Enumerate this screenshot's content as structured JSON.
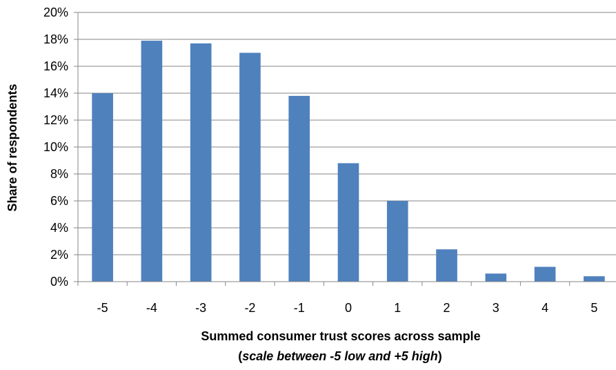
{
  "chart_data": {
    "type": "bar",
    "categories": [
      "-5",
      "-4",
      "-3",
      "-2",
      "-1",
      "0",
      "1",
      "2",
      "3",
      "4",
      "5"
    ],
    "values": [
      14.0,
      17.9,
      17.7,
      17.0,
      13.8,
      8.8,
      6.0,
      2.4,
      0.6,
      1.1,
      0.4
    ],
    "ylim": [
      0,
      20
    ],
    "yticks": [
      0,
      2,
      4,
      6,
      8,
      10,
      12,
      14,
      16,
      18,
      20
    ],
    "ytick_suffix": "%",
    "ylabel": "Share of respondents",
    "xlabel": "Summed consumer trust scores across sample",
    "xlabel_sub": {
      "open": "(",
      "italic": "scale between -5 low and +5 high",
      "close": ")"
    },
    "grid": true,
    "legend": "none",
    "bar_color": "#4F81BD",
    "grid_color": "#868686"
  }
}
